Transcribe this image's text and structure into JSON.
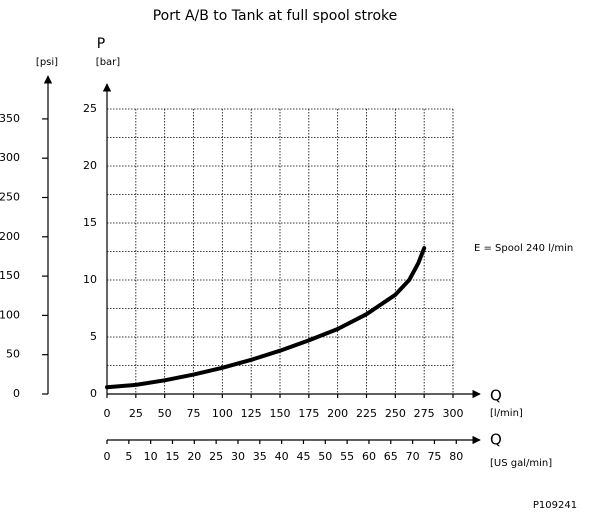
{
  "chart_data": {
    "type": "line",
    "title": "Port A/B to Tank at full spool stroke",
    "y_label": "P",
    "y_unit": "[bar]",
    "y2_unit": "[psi]",
    "x_label": "Q",
    "x_unit": "[l/min]",
    "x2_label": "Q",
    "x2_unit": "[US gal/min]",
    "annotation": "P109241",
    "x": [
      0,
      25,
      50,
      75,
      100,
      125,
      150,
      175,
      200,
      225,
      250,
      262,
      270,
      275
    ],
    "series": [
      {
        "name": "E = Spool 240 l/min",
        "color": "#000000",
        "values": [
          0.6,
          0.8,
          1.2,
          1.7,
          2.3,
          3.0,
          3.8,
          4.7,
          5.7,
          7.0,
          8.7,
          10.0,
          11.5,
          12.8
        ]
      }
    ],
    "xlim": [
      0,
      300
    ],
    "xticks": [
      0,
      25,
      50,
      75,
      100,
      125,
      150,
      175,
      200,
      225,
      250,
      275,
      300
    ],
    "ylim": [
      0,
      25
    ],
    "yticks": [
      0,
      5,
      10,
      15,
      20,
      25
    ],
    "yminorticks": [
      2.5,
      7.5,
      12.5,
      17.5,
      22.5
    ],
    "y2lim": [
      0,
      362.6
    ],
    "y2ticks": [
      0,
      50,
      100,
      150,
      200,
      250,
      300,
      350
    ],
    "x2lim": [
      0,
      79.25
    ],
    "x2ticks": [
      0,
      5,
      10,
      15,
      20,
      25,
      30,
      35,
      40,
      45,
      50,
      55,
      60,
      65,
      70,
      75,
      80
    ],
    "grid": true
  }
}
